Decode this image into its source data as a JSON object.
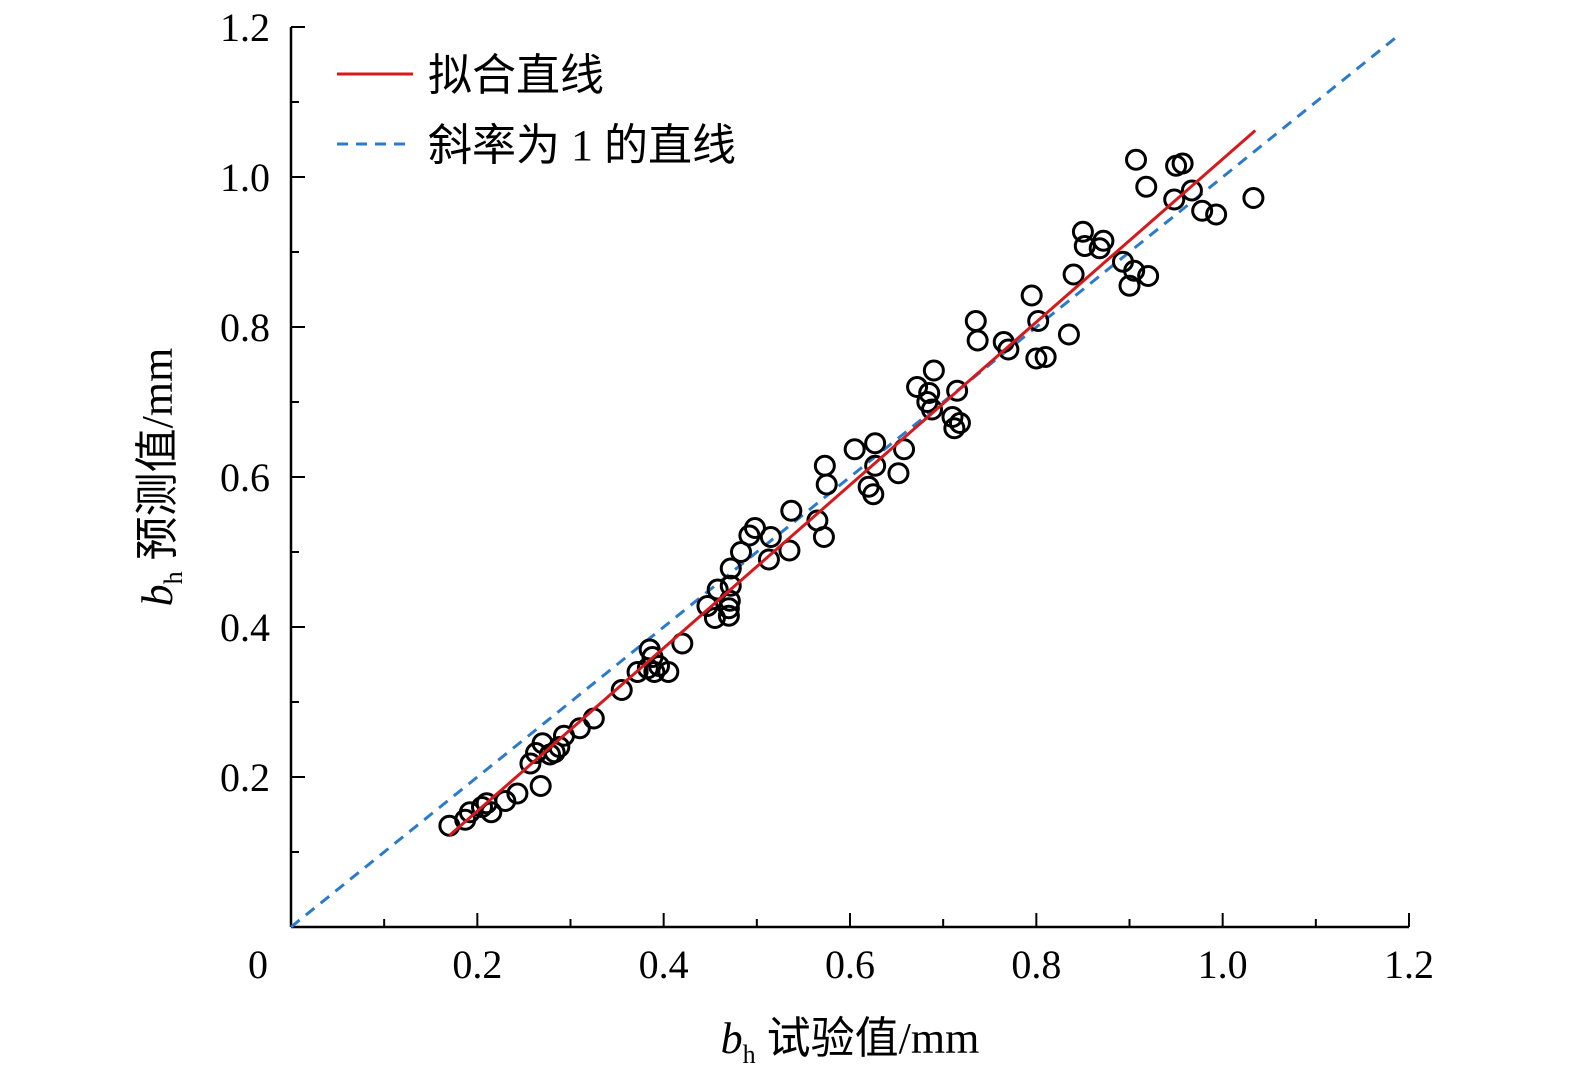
{
  "chart_data": {
    "type": "scatter",
    "xlabel": {
      "symbol": "b",
      "subscript": "h",
      "text": " 试验值/mm"
    },
    "ylabel": {
      "symbol": "b",
      "subscript": "h",
      "text": " 预测值/mm"
    },
    "xlim": [
      0,
      1.2
    ],
    "ylim": [
      0,
      1.2
    ],
    "origin_label": "0",
    "x_ticks": [
      0.2,
      0.4,
      0.6,
      0.8,
      1.0,
      1.2
    ],
    "x_tick_labels": [
      "0.2",
      "0.4",
      "0.6",
      "0.8",
      "1.0",
      "1.2"
    ],
    "y_ticks": [
      0.2,
      0.4,
      0.6,
      0.8,
      1.0,
      1.2
    ],
    "y_tick_labels": [
      "0.2",
      "0.4",
      "0.6",
      "0.8",
      "1.0",
      "1.2"
    ],
    "minor_tick_step": 0.1,
    "grid": false,
    "legend_position": "top-left",
    "legend": [
      {
        "label": "拟合直线",
        "color": "#d7191c",
        "style": "solid"
      },
      {
        "label": "斜率为 1 的直线",
        "color": "#2b7bcc",
        "style": "dashed"
      }
    ],
    "fit_line": {
      "x": [
        0.17,
        1.035
      ],
      "y": [
        0.122,
        1.062
      ],
      "color": "#d7191c"
    },
    "unity_line": {
      "x": [
        0.0,
        1.19
      ],
      "y": [
        0.0,
        1.19
      ],
      "color": "#2b7bcc"
    },
    "points": {
      "marker": "open-circle",
      "color": "#000000",
      "x": [
        0.17,
        0.187,
        0.192,
        0.205,
        0.21,
        0.215,
        0.23,
        0.243,
        0.257,
        0.263,
        0.268,
        0.27,
        0.278,
        0.283,
        0.288,
        0.293,
        0.31,
        0.325,
        0.355,
        0.372,
        0.383,
        0.385,
        0.388,
        0.39,
        0.395,
        0.405,
        0.42,
        0.447,
        0.455,
        0.458,
        0.47,
        0.47,
        0.471,
        0.472,
        0.472,
        0.483,
        0.492,
        0.498,
        0.513,
        0.515,
        0.535,
        0.537,
        0.565,
        0.572,
        0.573,
        0.575,
        0.605,
        0.62,
        0.625,
        0.627,
        0.627,
        0.652,
        0.658,
        0.672,
        0.683,
        0.685,
        0.688,
        0.69,
        0.71,
        0.712,
        0.715,
        0.718,
        0.735,
        0.737,
        0.765,
        0.77,
        0.795,
        0.8,
        0.802,
        0.81,
        0.835,
        0.84,
        0.85,
        0.852,
        0.868,
        0.872,
        0.893,
        0.9,
        0.905,
        0.907,
        0.918,
        0.92,
        0.948,
        0.95,
        0.957,
        0.967,
        0.978,
        0.993,
        1.033
      ],
      "y": [
        0.135,
        0.143,
        0.153,
        0.16,
        0.165,
        0.153,
        0.168,
        0.178,
        0.218,
        0.232,
        0.188,
        0.245,
        0.23,
        0.233,
        0.24,
        0.255,
        0.265,
        0.278,
        0.316,
        0.34,
        0.345,
        0.37,
        0.36,
        0.34,
        0.348,
        0.34,
        0.378,
        0.428,
        0.412,
        0.45,
        0.415,
        0.425,
        0.435,
        0.455,
        0.478,
        0.5,
        0.522,
        0.532,
        0.49,
        0.52,
        0.502,
        0.555,
        0.542,
        0.52,
        0.615,
        0.59,
        0.637,
        0.587,
        0.577,
        0.615,
        0.645,
        0.605,
        0.637,
        0.72,
        0.7,
        0.712,
        0.69,
        0.742,
        0.68,
        0.665,
        0.715,
        0.672,
        0.808,
        0.782,
        0.78,
        0.77,
        0.842,
        0.758,
        0.808,
        0.76,
        0.79,
        0.87,
        0.927,
        0.908,
        0.905,
        0.915,
        0.887,
        0.855,
        0.875,
        1.023,
        0.987,
        0.868,
        0.97,
        1.015,
        1.018,
        0.982,
        0.955,
        0.95,
        0.972
      ]
    }
  }
}
